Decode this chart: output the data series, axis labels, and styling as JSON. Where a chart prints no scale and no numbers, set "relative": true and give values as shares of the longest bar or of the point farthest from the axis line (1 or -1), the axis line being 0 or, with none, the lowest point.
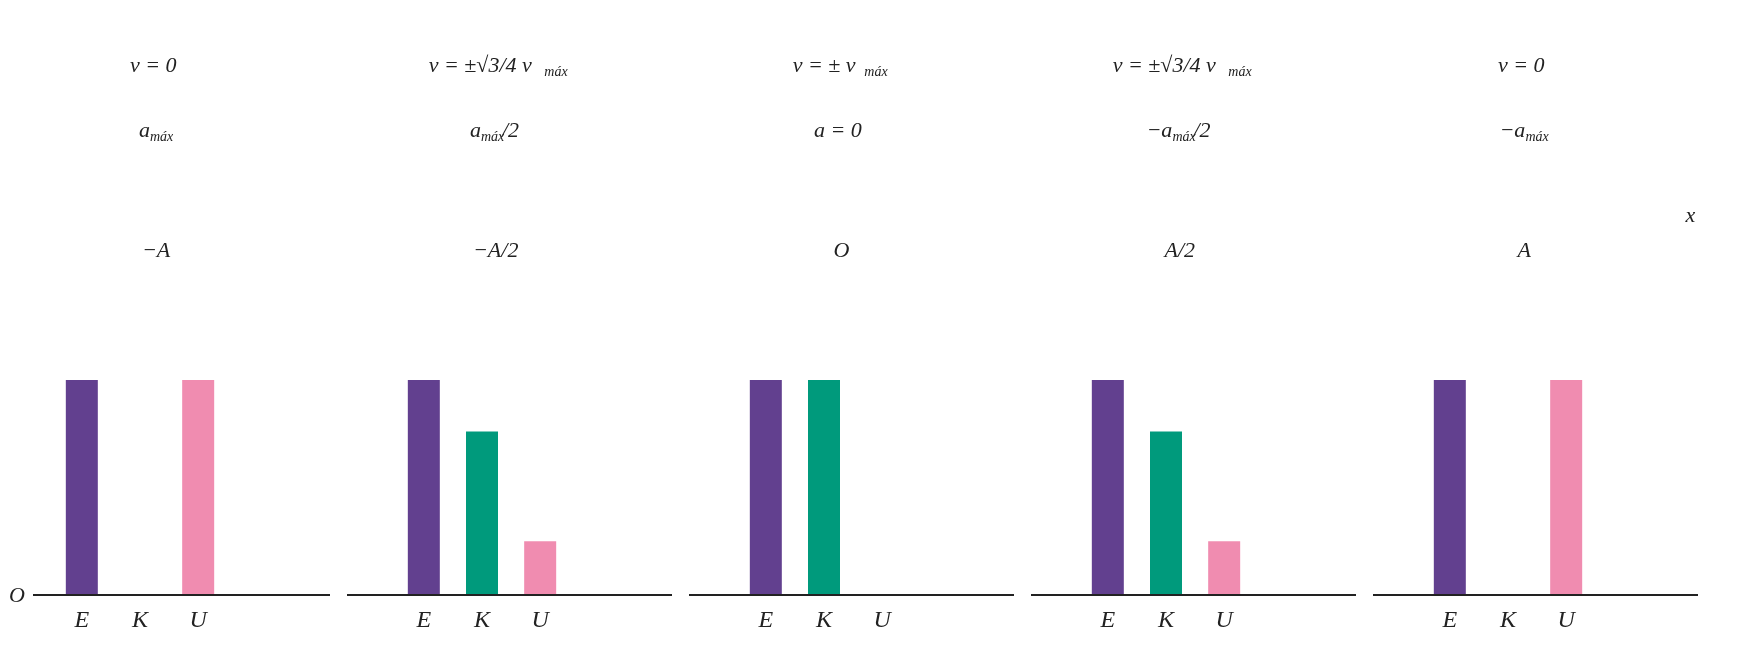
{
  "chart_data": [
    {
      "type": "bar",
      "relative": true,
      "categories": [
        "E",
        "K",
        "U"
      ],
      "values": [
        1,
        0,
        1
      ],
      "colors": [
        "#62408f",
        "#009a7c",
        "#f08cb0"
      ],
      "ylabel": "O",
      "annotations": [
        "v = 0",
        "a$_{máx}$",
        "−A"
      ]
    },
    {
      "type": "bar",
      "relative": true,
      "categories": [
        "E",
        "K",
        "U"
      ],
      "values": [
        1,
        0.76,
        0.25
      ],
      "colors": [
        "#62408f",
        "#009a7c",
        "#f08cb0"
      ],
      "annotations": [
        "v = ±√3/4 v$_{máx}$",
        "a$_{máx}$/2",
        "−A/2"
      ]
    },
    {
      "type": "bar",
      "relative": true,
      "categories": [
        "E",
        "K",
        "U"
      ],
      "values": [
        1,
        1,
        0
      ],
      "colors": [
        "#62408f",
        "#009a7c",
        "#f08cb0"
      ],
      "annotations": [
        "v = ± v$_{máx}$",
        "a = 0",
        "O"
      ]
    },
    {
      "type": "bar",
      "relative": true,
      "categories": [
        "E",
        "K",
        "U"
      ],
      "values": [
        1,
        0.76,
        0.25
      ],
      "colors": [
        "#62408f",
        "#009a7c",
        "#f08cb0"
      ],
      "annotations": [
        "v = ±√3/4 v$_{máx}$",
        "−a$_{máx}$/2",
        "A/2"
      ]
    },
    {
      "type": "bar",
      "relative": true,
      "categories": [
        "E",
        "K",
        "U"
      ],
      "values": [
        1,
        0,
        1
      ],
      "colors": [
        "#62408f",
        "#009a7c",
        "#f08cb0"
      ],
      "annotations": [
        "v = 0",
        "−a$_{máx}$",
        "A",
        "x"
      ]
    }
  ]
}
